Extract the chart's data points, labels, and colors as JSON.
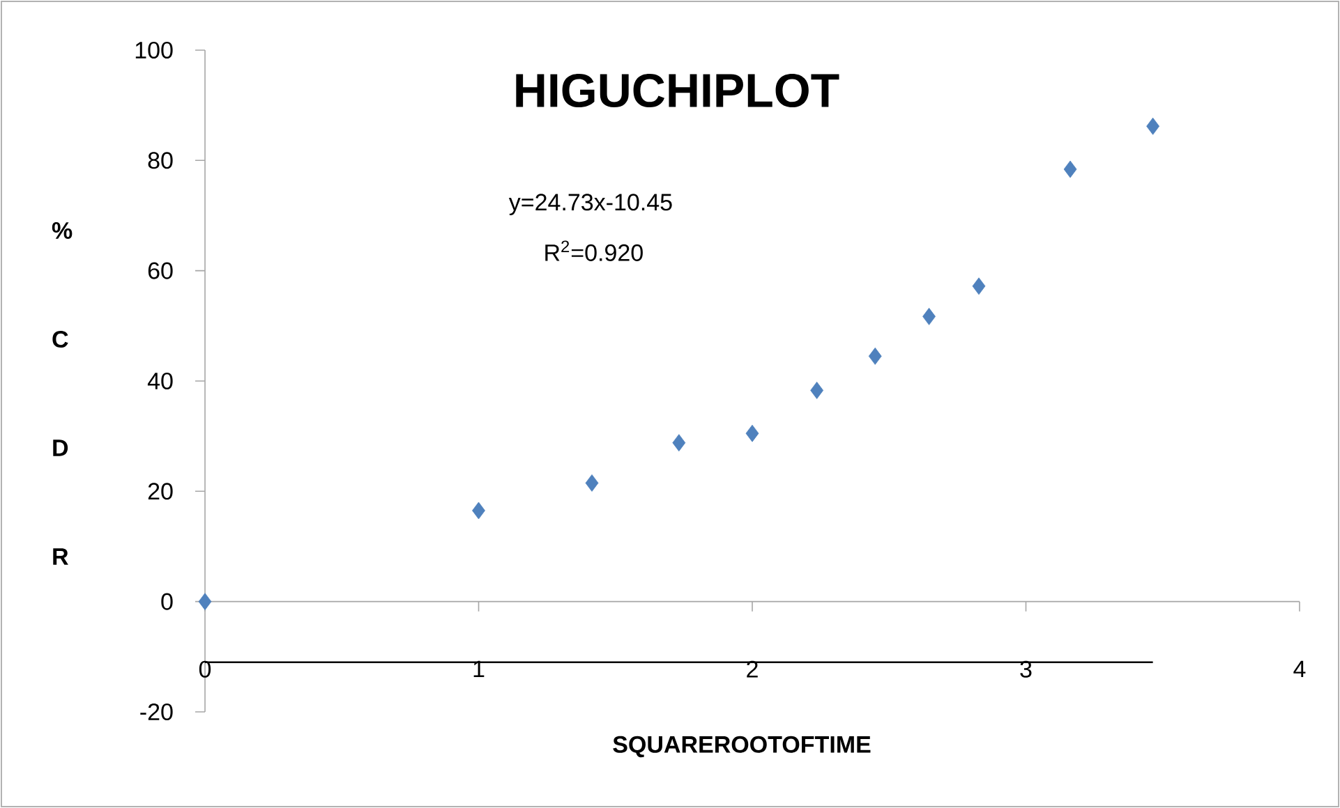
{
  "chart_data": {
    "type": "scatter",
    "title": "HIGUCHIPLOT",
    "xlabel": "SQUAREROOTOFTIME",
    "ylabel": "% C D R",
    "annotations": [
      "y=24.73x-10.45",
      "R$^{2}$=0.920"
    ],
    "x": [
      0,
      1,
      1.414,
      1.732,
      2,
      2.236,
      2.449,
      2.646,
      2.828,
      3.162,
      3.464
    ],
    "series": [
      {
        "color": "#4f81bd",
        "marker": "diamond",
        "values": [
          0,
          16.5,
          21.5,
          28.8,
          30.5,
          38.3,
          44.5,
          51.7,
          57.2,
          78.4,
          86.2
        ]
      },
      {
        "type": "line",
        "color": "#000000",
        "marker": "none",
        "x": [
          0,
          3.464
        ],
        "values": [
          -11,
          -11
        ]
      }
    ],
    "xlim": [
      0,
      4
    ],
    "ylim": [
      -20,
      100
    ],
    "xticks": [
      0,
      1,
      2,
      3,
      4
    ],
    "yticks": [
      -20,
      0,
      20,
      40,
      60,
      80,
      100
    ],
    "grid": false
  }
}
